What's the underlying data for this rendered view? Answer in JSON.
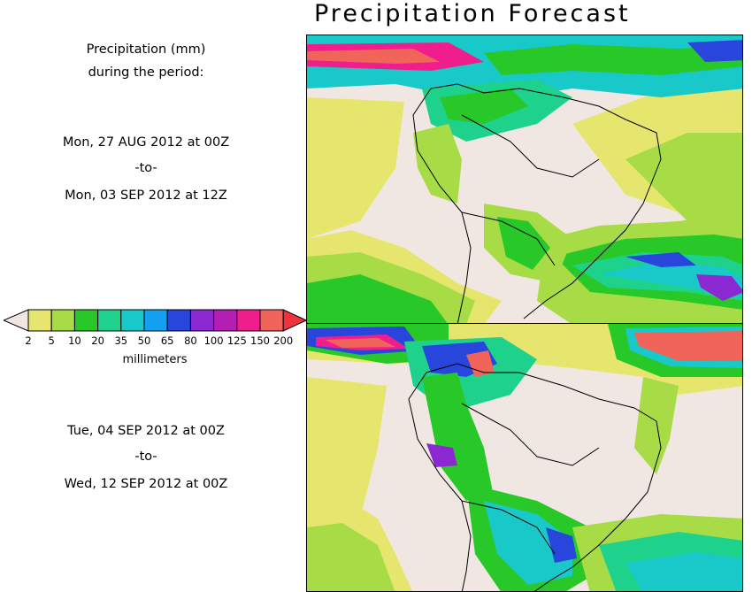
{
  "title": "Precipitation Forecast",
  "subtitle_line1": "Precipitation (mm)",
  "subtitle_line2": "during the period:",
  "period1": {
    "start": "Mon, 27 AUG 2012 at 00Z",
    "sep": "-to-",
    "end": "Mon, 03 SEP 2012 at 12Z"
  },
  "period2": {
    "start": "Tue, 04 SEP 2012 at 00Z",
    "sep": "-to-",
    "end": "Wed, 12 SEP 2012 at 00Z"
  },
  "colorbar": {
    "unit": "millimeters",
    "ticks": [
      "2",
      "5",
      "10",
      "20",
      "35",
      "50",
      "65",
      "80",
      "100",
      "125",
      "150",
      "200"
    ],
    "colors": [
      "#e6e66e",
      "#a8dc46",
      "#28c828",
      "#1ed28c",
      "#19c8c8",
      "#14a0f0",
      "#2846dc",
      "#8c28d2",
      "#b41eb4",
      "#f01e8c",
      "#f0645a"
    ],
    "low_color": "#f0e6e2",
    "high_color": "#f0323c"
  },
  "map_colors": {
    "land_dry": "#f0e6e2",
    "yellow": "#e6e66e",
    "lime": "#a8dc46",
    "green": "#28c828",
    "teal": "#1ed28c",
    "cyan": "#19c8c8",
    "blue": "#14a0f0",
    "navy": "#2846dc",
    "purple": "#8c28d2",
    "magenta": "#b41eb4",
    "pink": "#f01e8c",
    "red": "#f0645a"
  }
}
